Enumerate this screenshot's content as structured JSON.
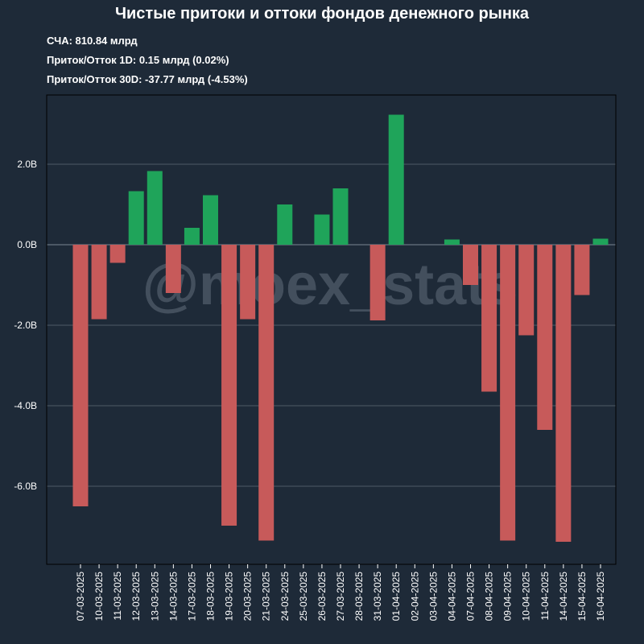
{
  "chart_data": {
    "type": "bar",
    "title": "Чистые притоки и оттоки фондов денежного рынка",
    "stats": [
      "СЧА: 810.84 млрд",
      "Приток/Отток 1D: 0.15 млрд (0.02%)",
      "Приток/Отток 30D: -37.77 млрд (-4.53%)"
    ],
    "watermark": "@moex_stats",
    "categories": [
      "07-03-2025",
      "10-03-2025",
      "11-03-2025",
      "12-03-2025",
      "13-03-2025",
      "14-03-2025",
      "17-03-2025",
      "18-03-2025",
      "19-03-2025",
      "20-03-2025",
      "21-03-2025",
      "24-03-2025",
      "25-03-2025",
      "26-03-2025",
      "27-03-2025",
      "28-03-2025",
      "31-03-2025",
      "01-04-2025",
      "02-04-2025",
      "03-04-2025",
      "04-04-2025",
      "07-04-2025",
      "08-04-2025",
      "09-04-2025",
      "10-04-2025",
      "11-04-2025",
      "14-04-2025",
      "15-04-2025",
      "16-04-2025"
    ],
    "values": [
      -6.5,
      -1.85,
      -0.45,
      1.33,
      1.83,
      -1.2,
      0.42,
      1.23,
      -6.98,
      -1.85,
      -7.35,
      1.0,
      0.0,
      0.75,
      1.4,
      0.0,
      -1.88,
      3.23,
      0.0,
      0.0,
      0.13,
      -1.0,
      -3.65,
      -7.35,
      -2.25,
      -4.6,
      -7.38,
      -1.25,
      0.15
    ],
    "ylim": [
      -7.9,
      3.7
    ],
    "yticks": [
      -6,
      -4,
      -2,
      0,
      2
    ],
    "ytick_labels": [
      "-6.0B",
      "-4.0B",
      "-2.0B",
      "0.0B",
      "2.0B"
    ],
    "xlabel": "",
    "ylabel": "",
    "grid": true,
    "colors": {
      "positive": "#1fa45a",
      "negative": "#c75a5a",
      "grid": "#4d5966",
      "zero_line": "#7a8592",
      "watermark": "#8a95a3"
    }
  }
}
